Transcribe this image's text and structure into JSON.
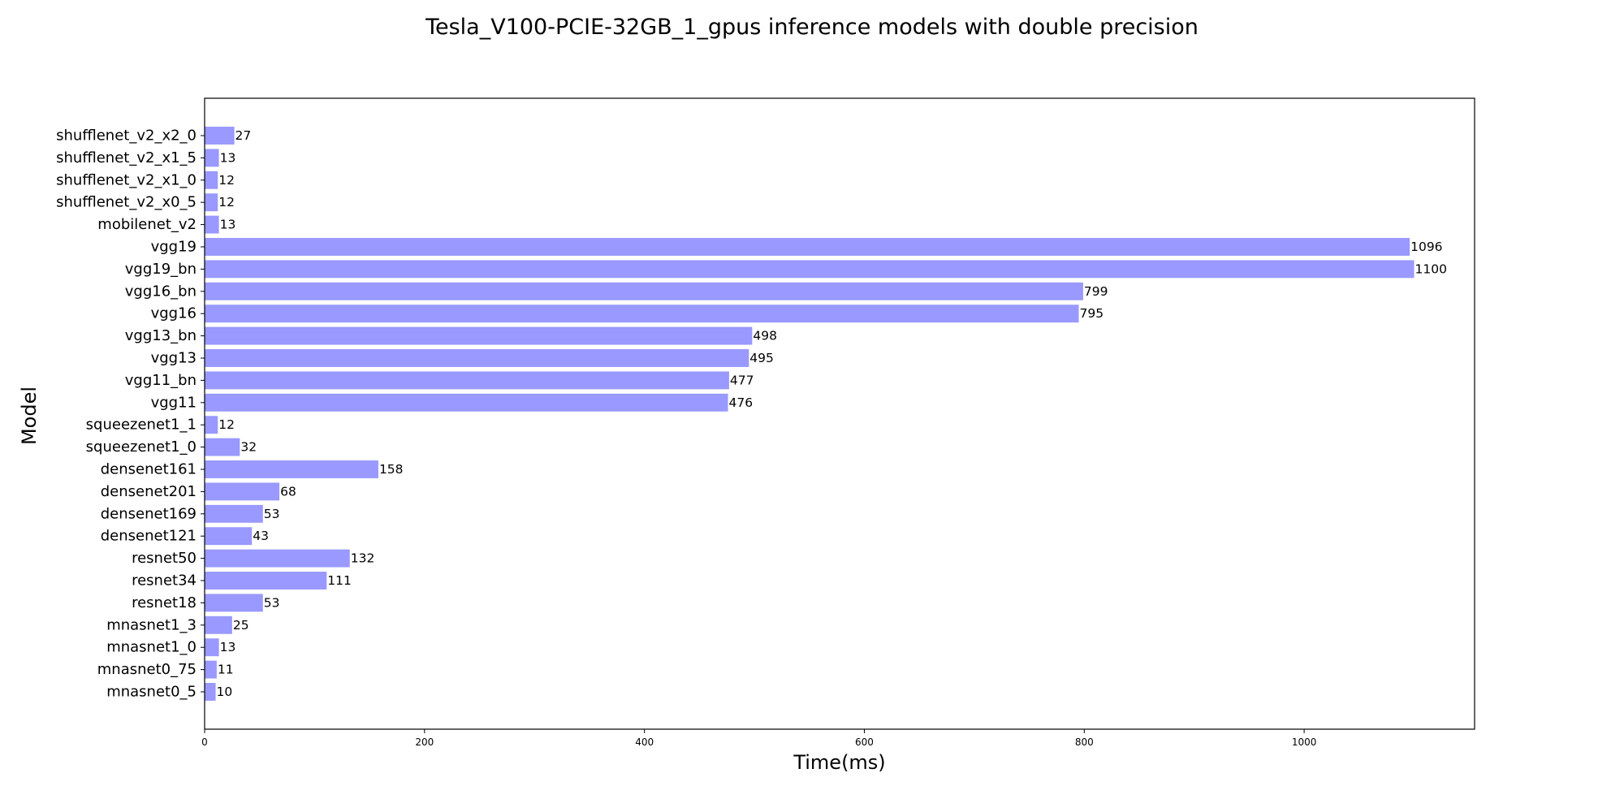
{
  "chart_data": {
    "type": "bar",
    "orientation": "horizontal",
    "title": "Tesla_V100-PCIE-32GB_1_gpus inference models with double precision",
    "xlabel": "Time(ms)",
    "ylabel": "Model",
    "xlim": [
      0,
      1155
    ],
    "xticks": [
      0,
      200,
      400,
      600,
      800,
      1000
    ],
    "grid": false,
    "legend": "none",
    "bar_color": "#9999ff",
    "categories": [
      "mnasnet0_5",
      "mnasnet0_75",
      "mnasnet1_0",
      "mnasnet1_3",
      "resnet18",
      "resnet34",
      "resnet50",
      "densenet121",
      "densenet169",
      "densenet201",
      "densenet161",
      "squeezenet1_0",
      "squeezenet1_1",
      "vgg11",
      "vgg11_bn",
      "vgg13",
      "vgg13_bn",
      "vgg16",
      "vgg16_bn",
      "vgg19_bn",
      "vgg19",
      "mobilenet_v2",
      "shufflenet_v2_x0_5",
      "shufflenet_v2_x1_0",
      "shufflenet_v2_x1_5",
      "shufflenet_v2_x2_0"
    ],
    "values": [
      10,
      11,
      13,
      25,
      53,
      111,
      132,
      43,
      53,
      68,
      158,
      32,
      12,
      476,
      477,
      495,
      498,
      795,
      799,
      1100,
      1096,
      13,
      12,
      12,
      13,
      27
    ]
  }
}
